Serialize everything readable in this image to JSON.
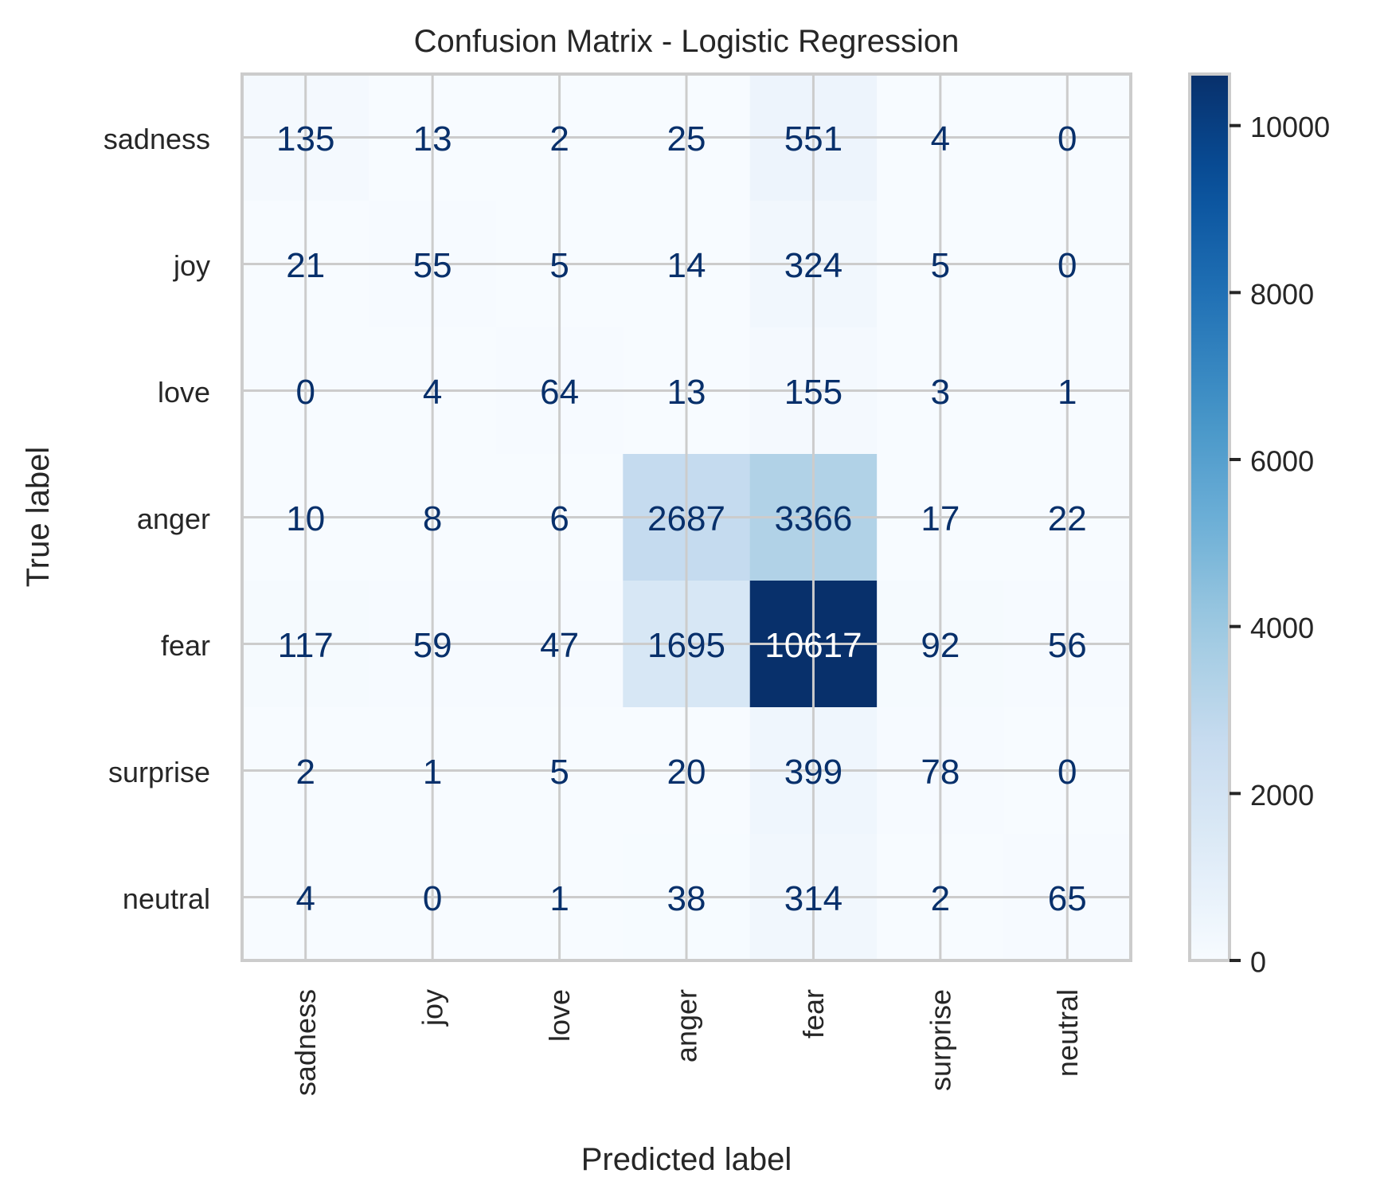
{
  "chart_data": {
    "type": "heatmap",
    "title": "Confusion Matrix - Logistic Regression",
    "xlabel": "Predicted label",
    "ylabel": "True label",
    "x_categories": [
      "sadness",
      "joy",
      "love",
      "anger",
      "fear",
      "surprise",
      "neutral"
    ],
    "y_categories": [
      "sadness",
      "joy",
      "love",
      "anger",
      "fear",
      "surprise",
      "neutral"
    ],
    "values": [
      [
        135,
        13,
        2,
        25,
        551,
        4,
        0
      ],
      [
        21,
        55,
        5,
        14,
        324,
        5,
        0
      ],
      [
        0,
        4,
        64,
        13,
        155,
        3,
        1
      ],
      [
        10,
        8,
        6,
        2687,
        3366,
        17,
        22
      ],
      [
        117,
        59,
        47,
        1695,
        10617,
        92,
        56
      ],
      [
        2,
        1,
        5,
        20,
        399,
        78,
        0
      ],
      [
        4,
        0,
        1,
        38,
        314,
        2,
        65
      ]
    ],
    "colormap": "Blues",
    "value_range": [
      0,
      10617
    ],
    "colorbar": {
      "ticks": [
        0,
        2000,
        4000,
        6000,
        8000,
        10000
      ],
      "tick_labels": [
        "0",
        "2000",
        "4000",
        "6000",
        "8000",
        "10000"
      ]
    },
    "grid": true,
    "colors": {
      "grid": "#cccccc",
      "text_dark": "#08306b",
      "text_light": "#ffffff",
      "frame": "#cccccc"
    }
  }
}
